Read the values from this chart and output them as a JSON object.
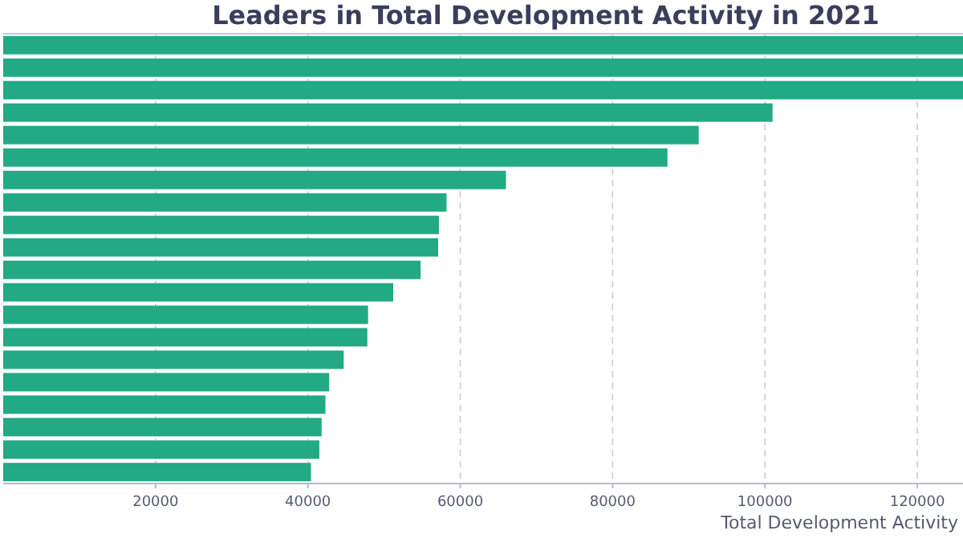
{
  "chart_data": {
    "type": "bar",
    "orientation": "horizontal",
    "title": "Leaders in Total Development Activity in 2021",
    "xlabel": "Total Development Activity",
    "categories": [
      null,
      null,
      null,
      null,
      null,
      null,
      null,
      null,
      null,
      null,
      null,
      null,
      null,
      null,
      null,
      null,
      null,
      null,
      null,
      null
    ],
    "values": [
      126000,
      126000,
      126000,
      101000,
      91300,
      87200,
      66000,
      58200,
      57200,
      57100,
      54800,
      51200,
      47900,
      47800,
      44700,
      42800,
      42300,
      41800,
      41500,
      40400
    ],
    "color": "#21aa84",
    "xlim": [
      0,
      126000
    ],
    "xticks": [
      20000,
      40000,
      60000,
      80000,
      100000,
      120000
    ],
    "grid": "x"
  }
}
